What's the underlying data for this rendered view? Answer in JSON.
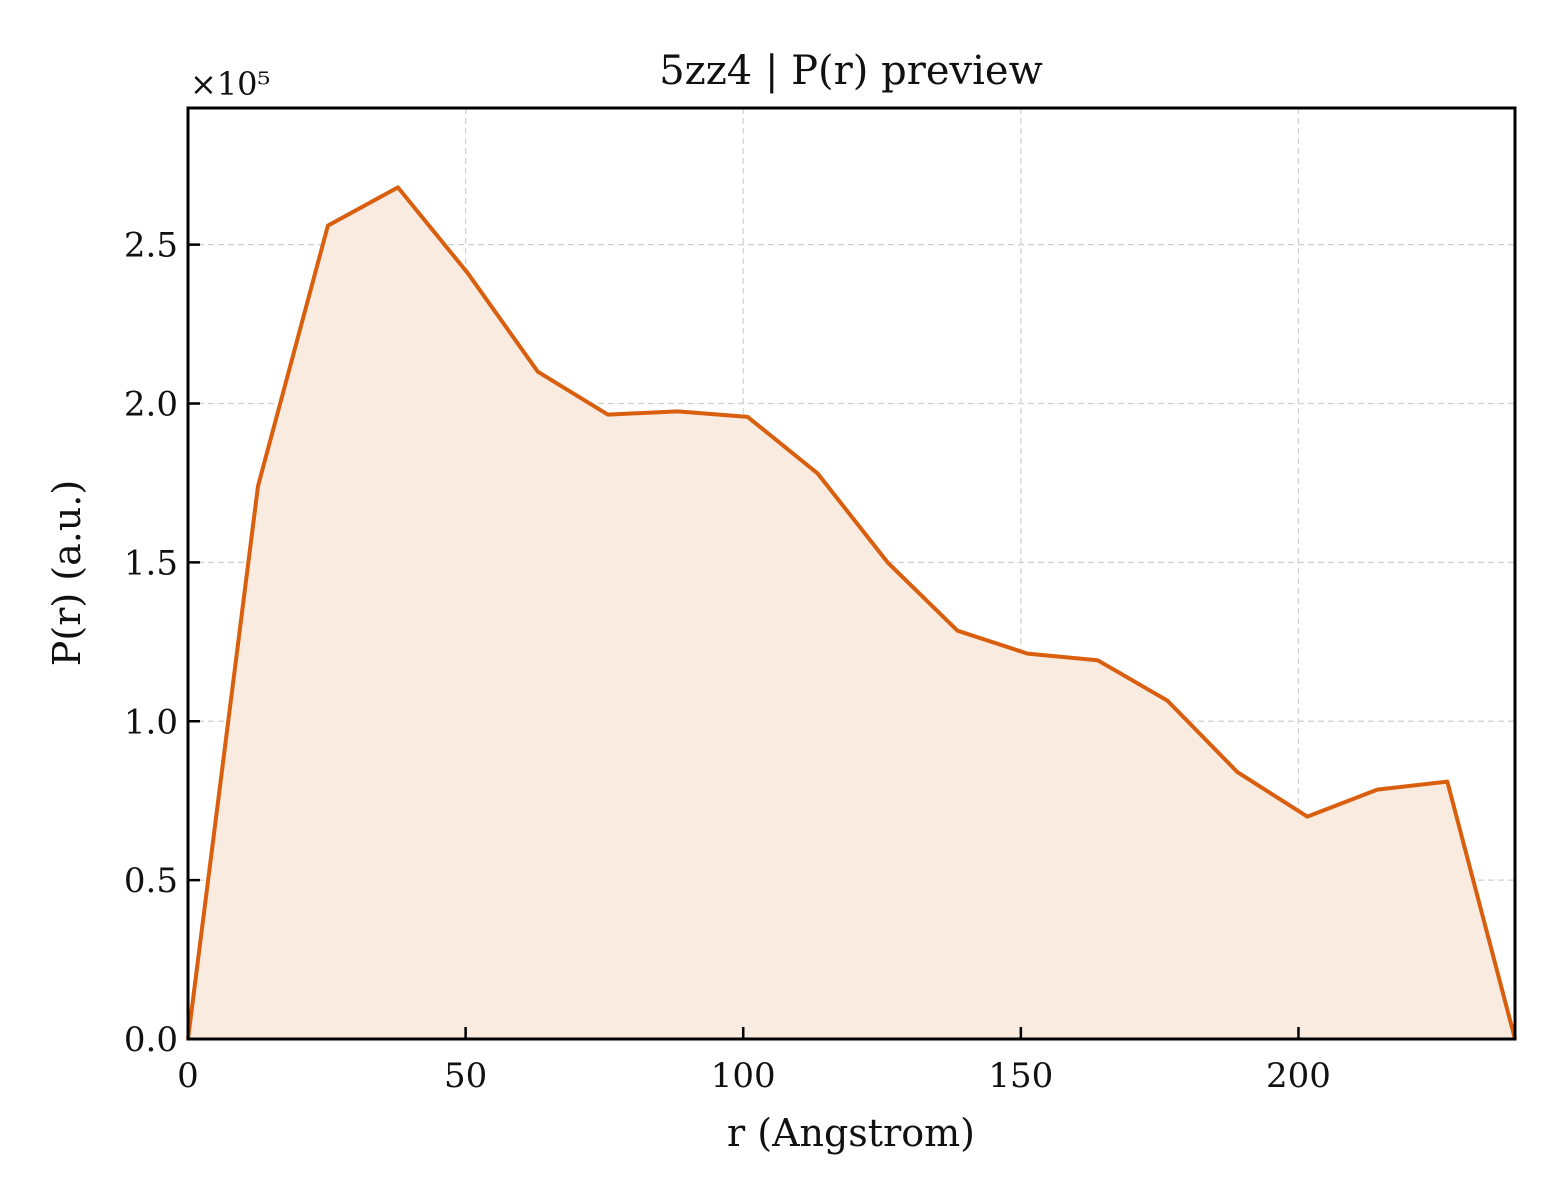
{
  "chart_data": {
    "type": "area",
    "title": "5zz4 | P(r) preview",
    "xlabel": "r (Angstrom)",
    "ylabel": "P(r) (a.u.)",
    "y_scale_label": "×10⁵",
    "y_multiplier": 100000,
    "xlim": [
      0,
      239
    ],
    "ylim": [
      0,
      2.93
    ],
    "grid": true,
    "x_ticks": [
      {
        "value": 0,
        "label": "0"
      },
      {
        "value": 50,
        "label": "50"
      },
      {
        "value": 100,
        "label": "100"
      },
      {
        "value": 150,
        "label": "150"
      },
      {
        "value": 200,
        "label": "200"
      }
    ],
    "y_ticks": [
      {
        "value": 0.0,
        "label": "0.0"
      },
      {
        "value": 0.5,
        "label": "0.5"
      },
      {
        "value": 1.0,
        "label": "1.0"
      },
      {
        "value": 1.5,
        "label": "1.5"
      },
      {
        "value": 2.0,
        "label": "2.0"
      },
      {
        "value": 2.5,
        "label": "2.5"
      }
    ],
    "series": [
      {
        "color": "#d95f0e",
        "fill": "#f9ebe0",
        "x": [
          0,
          12.6,
          25.2,
          37.8,
          50.4,
          63.0,
          75.6,
          88.2,
          100.8,
          113.4,
          126.0,
          138.6,
          151.2,
          163.8,
          176.4,
          189.0,
          201.6,
          214.2,
          226.8,
          239.0
        ],
        "y": [
          0.0,
          1.74,
          2.56,
          2.68,
          2.41,
          2.1,
          1.965,
          1.975,
          1.958,
          1.78,
          1.5,
          1.285,
          1.213,
          1.192,
          1.065,
          0.84,
          0.7,
          0.785,
          0.81,
          0.0
        ]
      }
    ]
  }
}
